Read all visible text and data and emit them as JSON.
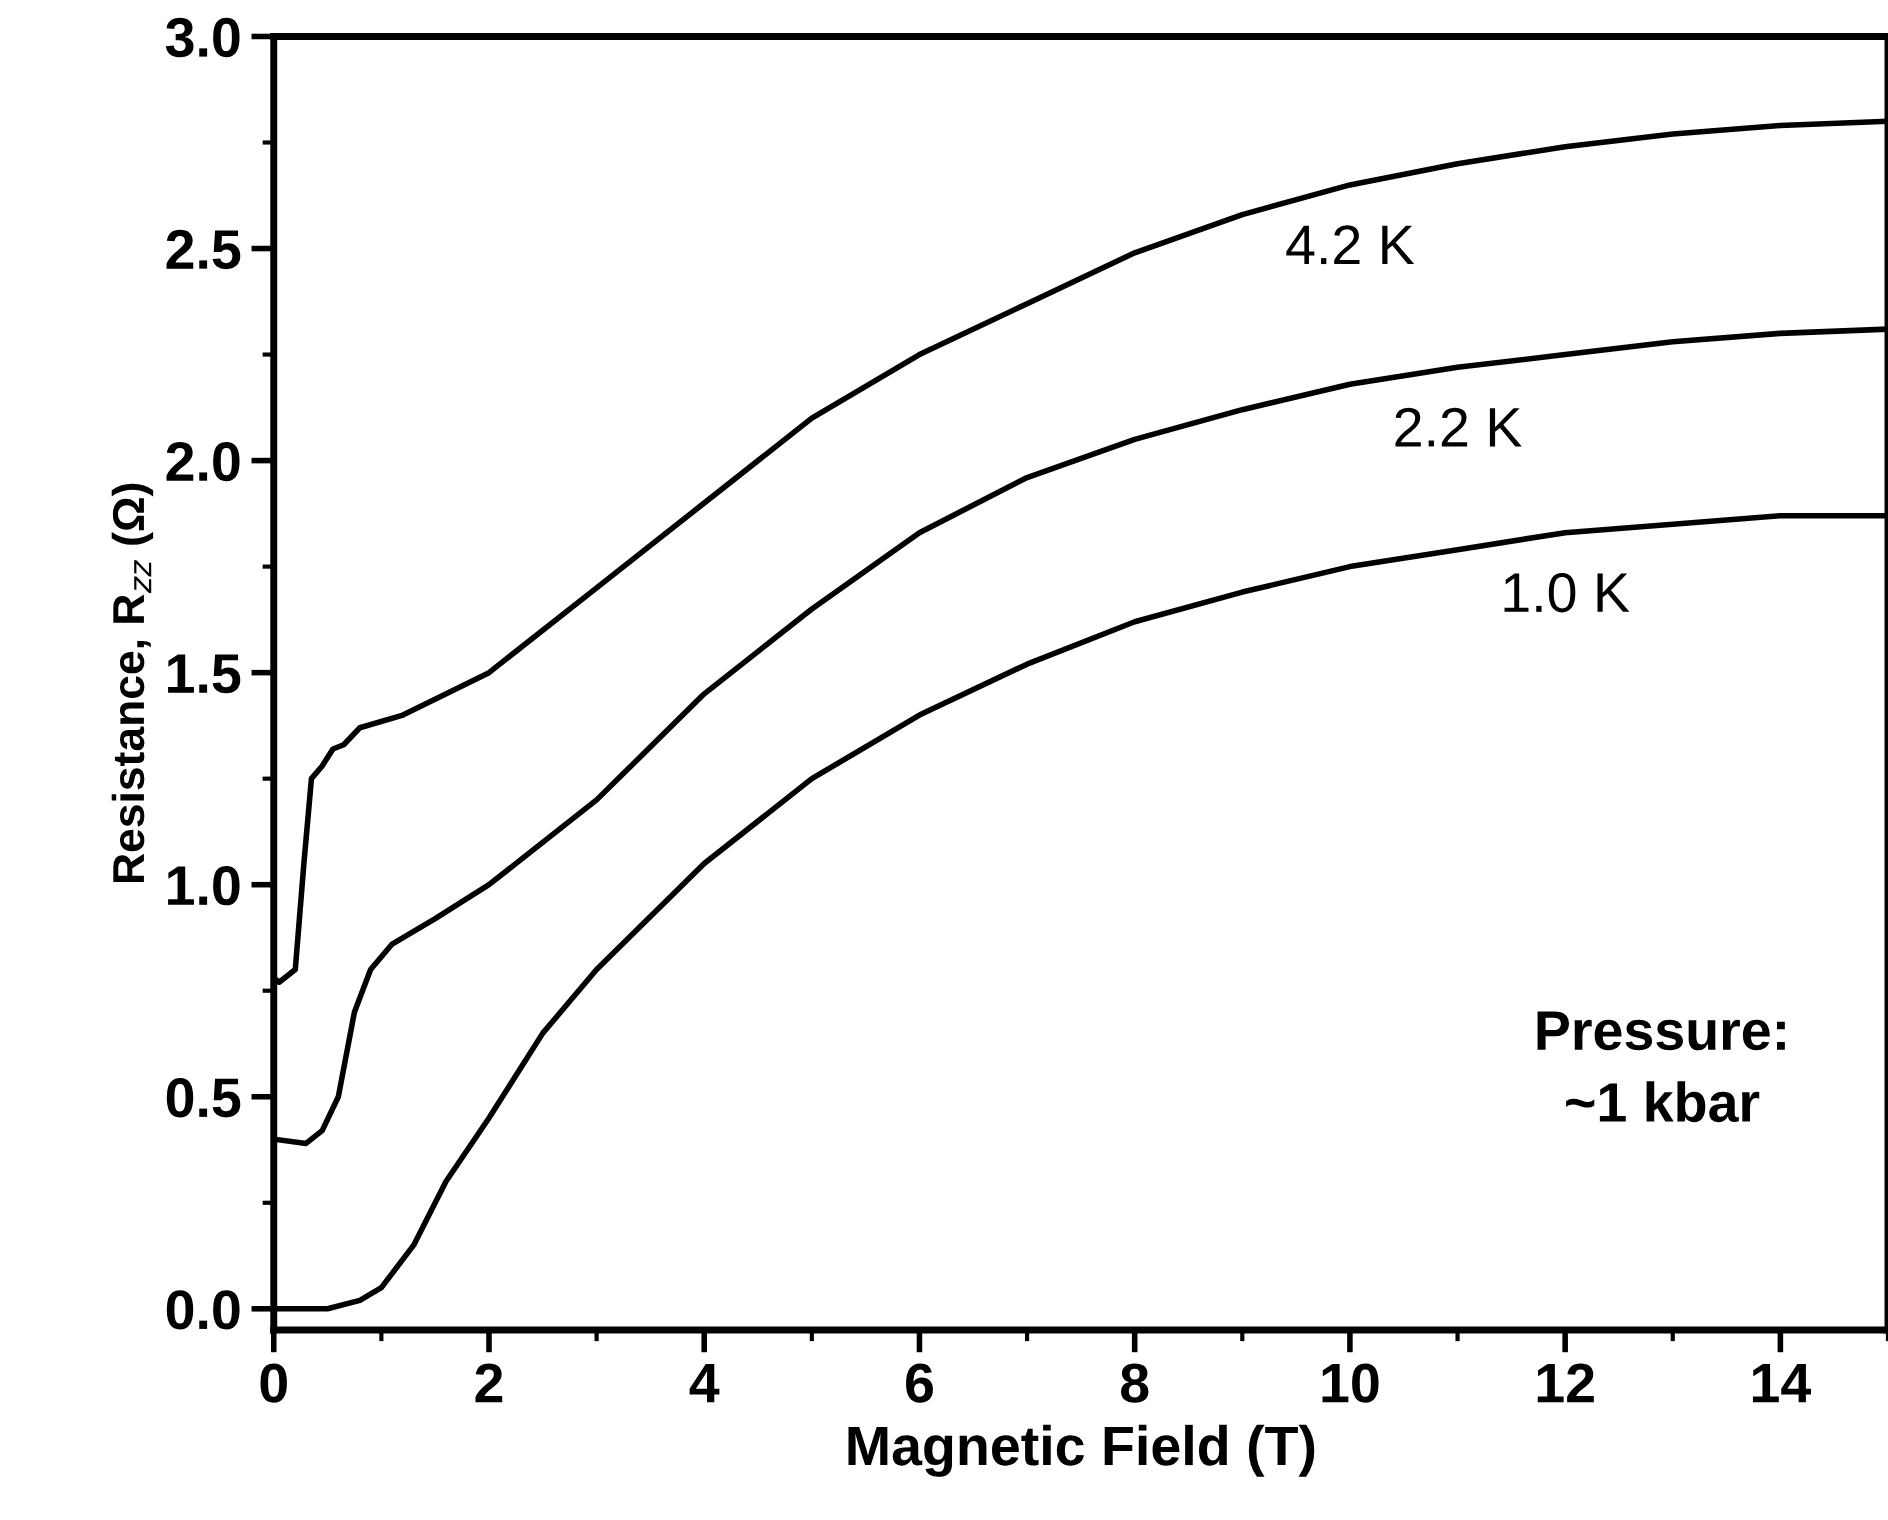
{
  "chart_data": {
    "type": "line",
    "xlabel": "Magnetic Field (T)",
    "ylabel": "Resistance, R$_{zz}$ (Ω)",
    "xlim": [
      0,
      15
    ],
    "ylim": [
      -0.05,
      3.0
    ],
    "xticks": [
      0,
      2,
      4,
      6,
      8,
      10,
      12,
      14
    ],
    "yticks": [
      {
        "value": 0,
        "label": "0.0"
      },
      0.5,
      {
        "value": 1,
        "label": "1.0"
      },
      1.5,
      {
        "value": 2,
        "label": "2.0"
      },
      2.5,
      {
        "value": 3,
        "label": "3.0"
      }
    ],
    "grid": false,
    "legend": false,
    "marker": "none",
    "line_style": "solid",
    "series": [
      {
        "name": "4.2 K",
        "color": "#000000",
        "x": [
          0,
          0.05,
          0.1,
          0.2,
          0.28,
          0.35,
          0.45,
          0.55,
          0.65,
          0.8,
          1.2,
          2,
          3,
          4,
          5,
          6,
          7,
          8,
          9,
          10,
          11,
          12,
          13,
          14,
          15
        ],
        "values": [
          0.78,
          0.77,
          0.78,
          0.8,
          1.05,
          1.25,
          1.28,
          1.32,
          1.33,
          1.37,
          1.4,
          1.5,
          1.7,
          1.9,
          2.1,
          2.25,
          2.37,
          2.49,
          2.58,
          2.65,
          2.7,
          2.74,
          2.77,
          2.79,
          2.8
        ]
      },
      {
        "name": "2.2 K",
        "color": "#000000",
        "x": [
          0,
          0.3,
          0.45,
          0.6,
          0.75,
          0.9,
          1.1,
          1.5,
          2,
          3,
          4,
          5,
          6,
          7,
          8,
          9,
          10,
          11,
          12,
          13,
          14,
          15
        ],
        "values": [
          0.4,
          0.39,
          0.42,
          0.5,
          0.7,
          0.8,
          0.86,
          0.92,
          1.0,
          1.2,
          1.45,
          1.65,
          1.83,
          1.96,
          2.05,
          2.12,
          2.18,
          2.22,
          2.25,
          2.28,
          2.3,
          2.31
        ]
      },
      {
        "name": "1.0 K",
        "color": "#000000",
        "x": [
          0,
          0.5,
          0.8,
          1.0,
          1.3,
          1.6,
          2,
          2.5,
          3,
          4,
          5,
          6,
          7,
          8,
          9,
          10,
          11,
          12,
          13,
          14,
          15
        ],
        "values": [
          0,
          0,
          0.02,
          0.05,
          0.15,
          0.3,
          0.45,
          0.65,
          0.8,
          1.05,
          1.25,
          1.4,
          1.52,
          1.62,
          1.69,
          1.75,
          1.79,
          1.83,
          1.85,
          1.87,
          1.87
        ]
      }
    ],
    "annotations": [
      "Pressure:\n~1 kbar"
    ]
  }
}
